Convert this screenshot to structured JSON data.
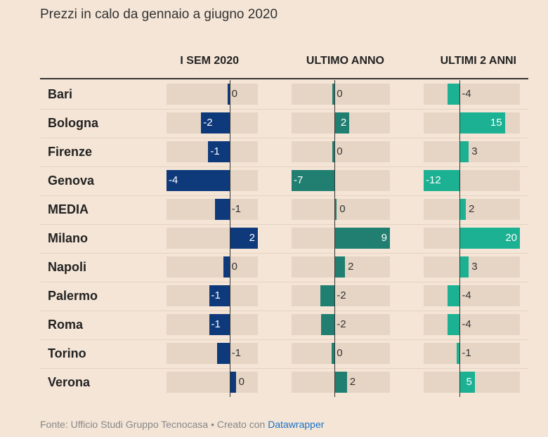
{
  "title": "Prezzi in calo da gennaio a giugno 2020",
  "footer": {
    "source": "Fonte: Ufficio Studi Gruppo Tecnocasa • Creato con ",
    "link": "Datawrapper"
  },
  "chart_data": {
    "type": "bar",
    "columns": [
      "I SEM 2020",
      "ULTIMO ANNO",
      "ULTIMI 2 ANNI"
    ],
    "categories": [
      "Bari",
      "Bologna",
      "Firenze",
      "Genova",
      "MEDIA",
      "Milano",
      "Napoli",
      "Palermo",
      "Roma",
      "Torino",
      "Verona"
    ],
    "series": [
      {
        "name": "I SEM 2020",
        "color": "#0e3a7c",
        "labels": [
          "0",
          "-2",
          "-1",
          "-4",
          "-1",
          "2",
          "0",
          "-1",
          "-1",
          "-1",
          "0"
        ],
        "values": [
          -0.1,
          -1.8,
          -1.35,
          -4.0,
          -0.9,
          1.8,
          -0.4,
          -1.3,
          -1.3,
          -0.8,
          0.4
        ],
        "xlim": [
          -4,
          1.8
        ]
      },
      {
        "name": "ULTIMO ANNO",
        "color": "#217f71",
        "labels": [
          "0",
          "2",
          "0",
          "-7",
          "0",
          "9",
          "2",
          "-2",
          "-2",
          "0",
          "2"
        ],
        "values": [
          -0.4,
          2.4,
          -0.1,
          -7.0,
          0.1,
          9.0,
          1.7,
          -2.3,
          -2.2,
          -0.5,
          2.0
        ],
        "xlim": [
          -7,
          9
        ]
      },
      {
        "name": "ULTIMI 2 ANNI",
        "color": "#1bb192",
        "labels": [
          "-4",
          "15",
          "3",
          "-12",
          "2",
          "20",
          "3",
          "-4",
          "-4",
          "-1",
          "5"
        ],
        "values": [
          -4,
          15,
          3,
          -12,
          2,
          20,
          3,
          -4,
          -4,
          -1,
          5
        ],
        "xlim": [
          -12,
          20
        ]
      }
    ]
  }
}
